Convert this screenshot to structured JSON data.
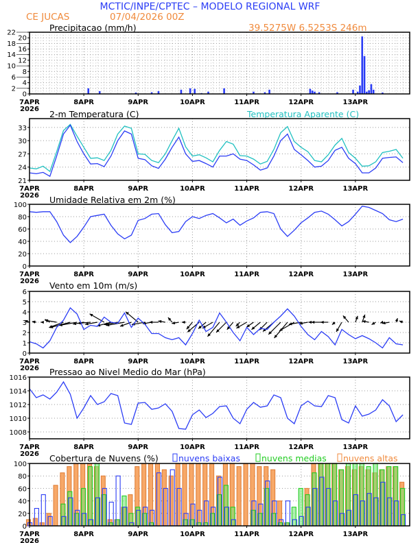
{
  "header": {
    "title": "MCTIC/INPE/CPTEC – MODELO REGIONAL WRF",
    "location": "CE JUCAS",
    "run": "07/04/2026 00Z",
    "coords": "39.5275W 6.5253S 246m"
  },
  "colors": {
    "title": "#2a3cf5",
    "orange": "#f08a3c",
    "line": "#2a3cf5",
    "apparent": "#20c0c0",
    "low": "#2a3cf5",
    "mid": "#22cc22",
    "high": "#f59a50"
  },
  "x_axis": {
    "ticks": [
      "7APR",
      "8APR",
      "9APR",
      "10APR",
      "11APR",
      "12APR",
      "13APR"
    ],
    "year": "2026"
  },
  "chart_data": [
    {
      "type": "bar",
      "title": "Precipitacao (mm/h)",
      "ylim": [
        0,
        22
      ],
      "yticks": [
        0,
        2,
        4,
        6,
        8,
        10,
        12,
        14,
        16,
        18,
        20,
        22
      ],
      "bars": [
        {
          "t": "08APR 02Z",
          "v": 2.0
        },
        {
          "t": "08APR 07Z",
          "v": 1.0
        },
        {
          "t": "08APR 23Z",
          "v": 0.5
        },
        {
          "t": "09APR 06Z",
          "v": 0.6
        },
        {
          "t": "09APR 09Z",
          "v": 1.0
        },
        {
          "t": "09APR 19Z",
          "v": 1.5
        },
        {
          "t": "09APR 23Z",
          "v": 2.0
        },
        {
          "t": "10APR 01Z",
          "v": 1.8
        },
        {
          "t": "10APR 04Z",
          "v": 0.3
        },
        {
          "t": "10APR 07Z",
          "v": 0.8
        },
        {
          "t": "10APR 14Z",
          "v": 2.0
        },
        {
          "t": "11APR 03Z",
          "v": 0.8
        },
        {
          "t": "11APR 08Z",
          "v": 0.6
        },
        {
          "t": "11APR 10Z",
          "v": 1.5
        },
        {
          "t": "12APR 04Z",
          "v": 1.8
        },
        {
          "t": "12APR 05Z",
          "v": 1.2
        },
        {
          "t": "12APR 06Z",
          "v": 0.8
        },
        {
          "t": "12APR 08Z",
          "v": 0.6
        },
        {
          "t": "12APR 16Z",
          "v": 0.6
        },
        {
          "t": "12APR 23Z",
          "v": 1.5
        },
        {
          "t": "13APR 01Z",
          "v": 0.8
        },
        {
          "t": "13APR 02Z",
          "v": 3.0
        },
        {
          "t": "13APR 03Z",
          "v": 20.5
        },
        {
          "t": "13APR 04Z",
          "v": 13.5
        },
        {
          "t": "13APR 05Z",
          "v": 0.8
        },
        {
          "t": "13APR 06Z",
          "v": 1.3
        },
        {
          "t": "13APR 07Z",
          "v": 3.5
        },
        {
          "t": "13APR 08Z",
          "v": 1.5
        },
        {
          "t": "13APR 12Z",
          "v": 0.5
        }
      ]
    },
    {
      "type": "line",
      "title": "2-m Temperatura (C)",
      "ylim": [
        21,
        35
      ],
      "yticks": [
        21,
        24,
        27,
        30,
        33
      ],
      "series": [
        {
          "name": "2-m Temperatura (C)",
          "values": [
            22.7,
            22.5,
            22.8,
            21.9,
            26.5,
            31.5,
            33.5,
            29.8,
            27.0,
            24.7,
            24.8,
            24.1,
            26.5,
            30.0,
            32.2,
            31.5,
            26.0,
            25.7,
            24.3,
            23.7,
            25.8,
            28.5,
            30.8,
            27.0,
            25.3,
            25.5,
            24.8,
            24.0,
            26.5,
            26.5,
            27.0,
            25.8,
            25.5,
            24.5,
            23.3,
            23.8,
            26.5,
            30.0,
            31.5,
            28.0,
            26.8,
            25.5,
            24.0,
            24.2,
            25.5,
            27.8,
            28.5,
            26.0,
            24.8,
            22.7,
            22.7,
            23.8,
            26.0,
            26.2,
            26.3,
            25.0
          ]
        },
        {
          "name": "Temperatura Aparente (C)",
          "values": [
            23.8,
            23.6,
            24.2,
            23.0,
            27.5,
            32.3,
            33.7,
            31.0,
            28.5,
            26.0,
            26.1,
            25.5,
            27.8,
            31.5,
            33.3,
            32.8,
            27.0,
            26.9,
            25.5,
            25.0,
            27.0,
            30.0,
            32.8,
            28.6,
            26.5,
            26.8,
            26.1,
            25.2,
            27.8,
            29.8,
            29.2,
            26.6,
            26.5,
            25.8,
            24.7,
            25.3,
            28.0,
            31.8,
            33.2,
            29.8,
            28.5,
            27.5,
            25.5,
            25.2,
            26.8,
            29.0,
            30.5,
            27.3,
            26.0,
            24.2,
            24.3,
            25.2,
            27.3,
            27.6,
            28.0,
            26.0
          ]
        }
      ]
    },
    {
      "type": "line",
      "title": "Umidade Relativa em 2m (%)",
      "ylim": [
        0,
        100
      ],
      "yticks": [
        0,
        20,
        40,
        60,
        80,
        100
      ],
      "series": [
        {
          "values": [
            88,
            87,
            88,
            88,
            72,
            50,
            38,
            48,
            63,
            80,
            82,
            84,
            66,
            52,
            44,
            50,
            74,
            77,
            84,
            85,
            67,
            54,
            56,
            72,
            80,
            77,
            82,
            85,
            78,
            70,
            76,
            66,
            73,
            78,
            87,
            88,
            85,
            60,
            48,
            58,
            70,
            78,
            87,
            89,
            84,
            75,
            65,
            72,
            84,
            97,
            95,
            90,
            85,
            75,
            72,
            76
          ]
        }
      ]
    },
    {
      "type": "line",
      "title": "Vento em 10m (m/s)",
      "ylim": [
        0,
        6
      ],
      "yticks": [
        0,
        1,
        2,
        3,
        4,
        5,
        6
      ],
      "series": [
        {
          "values": [
            1.1,
            0.9,
            0.5,
            1.2,
            2.5,
            3.2,
            4.4,
            3.8,
            2.3,
            2.7,
            2.6,
            3.5,
            3.0,
            2.9,
            3.9,
            2.5,
            3.4,
            2.8,
            1.9,
            1.9,
            1.5,
            1.3,
            1.5,
            0.8,
            1.9,
            3.2,
            2.1,
            2.5,
            3.9,
            3.0,
            2.0,
            1.2,
            2.5,
            1.8,
            2.4,
            2.3,
            3.0,
            3.6,
            4.3,
            3.6,
            2.6,
            1.8,
            1.3,
            2.1,
            1.6,
            0.8,
            2.3,
            1.8,
            1.4,
            1.7,
            1.4,
            1.0,
            0.5,
            1.5,
            0.9,
            0.8
          ]
        }
      ],
      "wind_direction_deg": [
        110,
        100,
        90,
        120,
        100,
        70,
        75,
        80,
        80,
        85,
        80,
        120,
        75,
        80,
        80,
        70,
        130,
        80,
        80,
        90,
        100,
        140,
        80,
        90,
        40,
        50,
        50,
        60,
        40,
        45,
        40,
        45,
        60,
        55,
        50,
        45,
        50,
        45,
        40,
        60,
        80,
        80,
        90,
        90,
        90,
        50,
        30,
        140,
        200,
        200,
        100,
        60,
        70,
        80,
        200,
        110
      ]
    },
    {
      "type": "line",
      "title": "Pressao ao Nivel Medio do Mar (hPa)",
      "ylim": [
        1007,
        1016
      ],
      "yticks": [
        1008,
        1010,
        1012,
        1014,
        1016
      ],
      "series": [
        {
          "values": [
            1014.3,
            1013.0,
            1013.4,
            1012.8,
            1013.8,
            1015.3,
            1013.5,
            1010.0,
            1011.5,
            1013.3,
            1012.0,
            1012.4,
            1013.6,
            1013.3,
            1009.3,
            1009.1,
            1012.2,
            1012.3,
            1011.3,
            1011.5,
            1012.1,
            1011.0,
            1008.5,
            1008.4,
            1010.5,
            1011.2,
            1010.1,
            1010.7,
            1011.7,
            1011.8,
            1010.0,
            1009.2,
            1011.3,
            1012.3,
            1011.6,
            1011.8,
            1013.4,
            1013.0,
            1010.0,
            1009.2,
            1011.8,
            1012.5,
            1011.8,
            1011.7,
            1013.3,
            1013.0,
            1009.8,
            1009.3,
            1011.8,
            1010.3,
            1010.6,
            1011.2,
            1012.7,
            1011.8,
            1009.5,
            1010.5
          ]
        }
      ]
    },
    {
      "type": "bar",
      "title": "Cobertura de Nuvens (%)",
      "ylim": [
        0,
        100
      ],
      "yticks": [
        0,
        20,
        40,
        60,
        80,
        100
      ],
      "series": [
        {
          "name": "nuvens altas",
          "values": [
            10,
            12,
            5,
            20,
            65,
            85,
            95,
            100,
            100,
            100,
            95,
            80,
            10,
            10,
            30,
            50,
            95,
            100,
            100,
            100,
            90,
            80,
            100,
            100,
            100,
            100,
            100,
            100,
            80,
            100,
            100,
            95,
            100,
            100,
            95,
            95,
            90,
            40,
            5,
            0,
            0,
            60,
            100,
            100,
            100,
            100,
            90,
            95,
            90,
            95,
            90,
            85,
            90,
            95,
            95,
            70
          ]
        },
        {
          "name": "nuvens medias",
          "values": [
            0,
            0,
            0,
            0,
            0,
            35,
            55,
            20,
            60,
            95,
            100,
            50,
            5,
            10,
            48,
            20,
            30,
            20,
            5,
            0,
            0,
            0,
            0,
            10,
            10,
            5,
            5,
            20,
            50,
            65,
            30,
            0,
            0,
            25,
            20,
            60,
            20,
            5,
            5,
            30,
            60,
            50,
            85,
            100,
            100,
            100,
            90,
            100,
            100,
            100,
            95,
            100,
            90,
            95,
            95,
            60
          ]
        },
        {
          "name": "nuvens baixas",
          "values": [
            5,
            28,
            50,
            15,
            0,
            15,
            45,
            25,
            20,
            10,
            45,
            60,
            38,
            80,
            30,
            5,
            25,
            30,
            25,
            85,
            60,
            90,
            60,
            20,
            35,
            25,
            40,
            30,
            78,
            30,
            10,
            0,
            0,
            40,
            35,
            72,
            40,
            10,
            40,
            10,
            15,
            30,
            60,
            78,
            60,
            40,
            20,
            25,
            50,
            40,
            52,
            45,
            70,
            45,
            40,
            18
          ]
        }
      ]
    }
  ]
}
